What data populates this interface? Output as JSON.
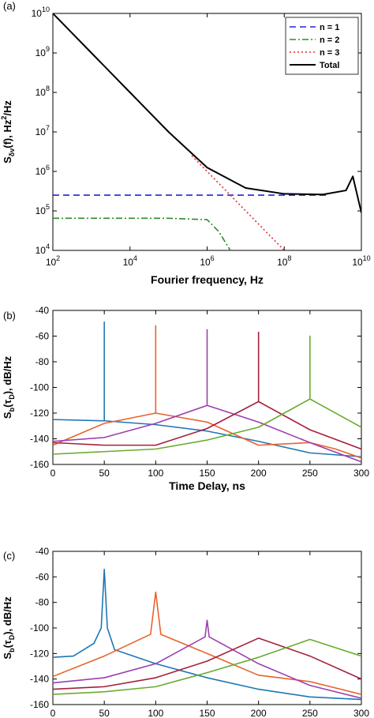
{
  "chart_data": [
    {
      "panel_label": "(a)",
      "type": "line",
      "xscale": "log",
      "yscale": "log",
      "xlim": [
        100,
        10000000000
      ],
      "ylim": [
        10000,
        10000000000
      ],
      "x_ticks": [
        {
          "m": "10",
          "e": "2"
        },
        {
          "m": "10",
          "e": "4"
        },
        {
          "m": "10",
          "e": "6"
        },
        {
          "m": "10",
          "e": "8"
        },
        {
          "m": "10",
          "e": "10"
        }
      ],
      "y_ticks": [
        {
          "m": "10",
          "e": "4"
        },
        {
          "m": "10",
          "e": "5"
        },
        {
          "m": "10",
          "e": "6"
        },
        {
          "m": "10",
          "e": "7"
        },
        {
          "m": "10",
          "e": "8"
        },
        {
          "m": "10",
          "e": "9"
        },
        {
          "m": "10",
          "e": "10"
        }
      ],
      "xlabel": "Fourier frequency, Hz",
      "ylabel": {
        "pre": "S",
        "sub": "δν",
        "mid": "(f), Hz",
        "sup": "2",
        "post": "/Hz"
      },
      "legend_position": "top-right",
      "grid": false,
      "series": [
        {
          "name": "n = 1",
          "color": "#2323d6",
          "dash": "8,5",
          "x": [
            100,
            100000000,
            1300000000
          ],
          "y": [
            250000,
            250000,
            250000
          ]
        },
        {
          "name": "n = 2",
          "color": "#2e8b2e",
          "dash": "8,3,2,3",
          "x": [
            100,
            100000,
            1000000,
            2000000,
            4000000
          ],
          "y": [
            65000,
            65000,
            60000,
            30000,
            10000
          ]
        },
        {
          "name": "n = 3",
          "color": "#e03030",
          "dash": "2,3",
          "x": [
            400000,
            1000000,
            10000000,
            100000000
          ],
          "y": [
            2500000,
            1000000,
            100000,
            10000
          ]
        },
        {
          "name": "Total",
          "color": "#000000",
          "dash": "",
          "x": [
            100,
            1000,
            10000,
            100000,
            1000000,
            10000000,
            100000000,
            1000000000,
            4000000000,
            6000000000,
            10000000000
          ],
          "y": [
            10000000000,
            1000000000,
            100000000,
            10000000,
            1250000,
            380000,
            270000,
            260000,
            330000,
            750000,
            90000
          ]
        }
      ]
    },
    {
      "panel_label": "(b)",
      "type": "line",
      "xlim": [
        0,
        300
      ],
      "ylim": [
        -160,
        -40
      ],
      "x_ticks": [
        "0",
        "50",
        "100",
        "150",
        "200",
        "250",
        "300"
      ],
      "y_ticks": [
        "-160",
        "-140",
        "-120",
        "-100",
        "-80",
        "-60",
        "-40"
      ],
      "xlabel": "Time Delay, ns",
      "ylabel": {
        "pre": "S",
        "sub": "b",
        "mid": "(τ",
        "sub2": "D",
        "post": "), dB/Hz"
      },
      "grid": false,
      "series": [
        {
          "color": "#1f77b4",
          "x": [
            0,
            50,
            50,
            50,
            100,
            150,
            200,
            250,
            300
          ],
          "y": [
            -125,
            -126,
            -49,
            -126,
            -129,
            -134,
            -142,
            -151,
            -154
          ]
        },
        {
          "color": "#e8632b",
          "x": [
            0,
            50,
            100,
            100,
            100,
            150,
            200,
            250,
            275,
            300
          ],
          "y": [
            -145,
            -128,
            -120,
            -52,
            -120,
            -127,
            -145,
            -143,
            -148,
            -155
          ]
        },
        {
          "color": "#9b3fb0",
          "x": [
            0,
            50,
            100,
            150,
            150,
            150,
            200,
            250,
            300
          ],
          "y": [
            -142,
            -139,
            -128,
            -114,
            -55,
            -114,
            -127,
            -143,
            -158
          ]
        },
        {
          "color": "#a3203a",
          "x": [
            0,
            25,
            50,
            100,
            150,
            200,
            200,
            200,
            250,
            300
          ],
          "y": [
            -143,
            -144,
            -145,
            -145,
            -132,
            -111,
            -57,
            -111,
            -133,
            -148
          ]
        },
        {
          "color": "#6aab2e",
          "x": [
            0,
            50,
            100,
            150,
            200,
            250,
            250,
            250,
            300
          ],
          "y": [
            -152,
            -150,
            -148,
            -141,
            -131,
            -109,
            -60,
            -109,
            -131
          ]
        }
      ]
    },
    {
      "panel_label": "(c)",
      "type": "line",
      "xlim": [
        0,
        300
      ],
      "ylim": [
        -160,
        -40
      ],
      "x_ticks": [
        "0",
        "50",
        "100",
        "150",
        "200",
        "250",
        "300"
      ],
      "y_ticks": [
        "-160",
        "-140",
        "-120",
        "-100",
        "-80",
        "-60",
        "-40"
      ],
      "xlabel": "Time Delay, ns",
      "ylabel": {
        "pre": "S",
        "sub": "b",
        "mid": "(τ",
        "sub2": "D",
        "post": "), dB/Hz"
      },
      "grid": false,
      "series": [
        {
          "color": "#1f77b4",
          "x": [
            0,
            20,
            40,
            47,
            50,
            53,
            60,
            100,
            150,
            200,
            250,
            300
          ],
          "y": [
            -123,
            -122,
            -112,
            -100,
            -54,
            -100,
            -117,
            -128,
            -139,
            -148,
            -154,
            -156
          ]
        },
        {
          "color": "#e8632b",
          "x": [
            0,
            50,
            95,
            100,
            105,
            150,
            200,
            250,
            300
          ],
          "y": [
            -138,
            -122,
            -105,
            -72,
            -105,
            -120,
            -137,
            -142,
            -152
          ]
        },
        {
          "color": "#9b3fb0",
          "x": [
            0,
            50,
            100,
            148,
            150,
            152,
            200,
            250,
            300
          ],
          "y": [
            -143,
            -139,
            -128,
            -107,
            -94,
            -107,
            -128,
            -145,
            -155
          ]
        },
        {
          "color": "#a3203a",
          "x": [
            0,
            50,
            100,
            150,
            200,
            250,
            300
          ],
          "y": [
            -148,
            -146,
            -139,
            -126,
            -108,
            -122,
            -140
          ]
        },
        {
          "color": "#6aab2e",
          "x": [
            0,
            50,
            100,
            150,
            200,
            250,
            300
          ],
          "y": [
            -152,
            -150,
            -146,
            -135,
            -123,
            -109,
            -122
          ]
        }
      ]
    }
  ]
}
